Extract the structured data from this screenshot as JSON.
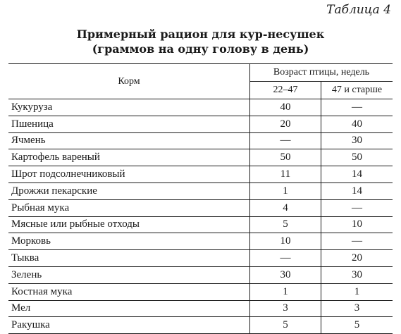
{
  "caption": "Таблица 4",
  "title_line1": "Примерный рацион для кур-несушек",
  "title_line2": "(граммов на одну голову в день)",
  "header": {
    "feed": "Корм",
    "age": "Возраст птицы, недель",
    "col1": "22–47",
    "col2": "47 и старше"
  },
  "rows": [
    {
      "name": "Кукуруза",
      "v1": "40",
      "v2": "—"
    },
    {
      "name": "Пшеница",
      "v1": "20",
      "v2": "40"
    },
    {
      "name": "Ячмень",
      "v1": "—",
      "v2": "30"
    },
    {
      "name": "Картофель вареный",
      "v1": "50",
      "v2": "50"
    },
    {
      "name": "Шрот подсолнечниковый",
      "v1": "11",
      "v2": "14"
    },
    {
      "name": "Дрожжи пекарские",
      "v1": "1",
      "v2": "14"
    },
    {
      "name": "Рыбная мука",
      "v1": "4",
      "v2": "—"
    },
    {
      "name": "Мясные или рыбные отходы",
      "v1": "5",
      "v2": "10"
    },
    {
      "name": "Морковь",
      "v1": "10",
      "v2": "—"
    },
    {
      "name": "Тыква",
      "v1": "—",
      "v2": "20"
    },
    {
      "name": "Зелень",
      "v1": "30",
      "v2": "30"
    },
    {
      "name": "Костная мука",
      "v1": "1",
      "v2": "1"
    },
    {
      "name": "Мел",
      "v1": "3",
      "v2": "3"
    },
    {
      "name": "Ракушка",
      "v1": "5",
      "v2": "5"
    }
  ]
}
